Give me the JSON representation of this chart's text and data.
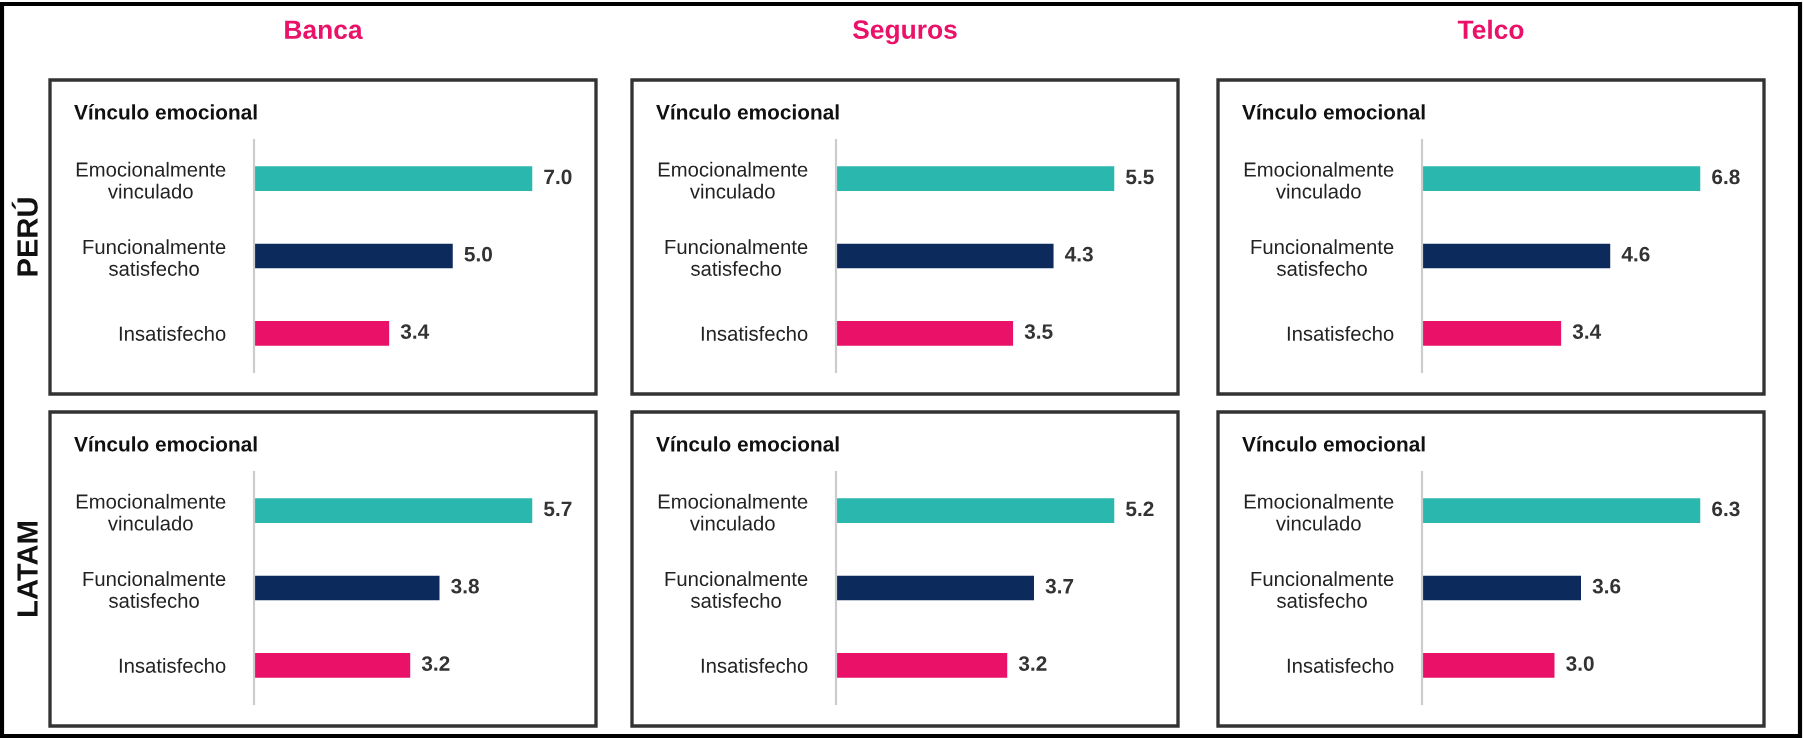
{
  "chart_data": [
    {
      "type": "bar",
      "orientation": "horizontal",
      "title": "Vínculo emocional",
      "annotations": [
        "Banca",
        "PERÚ"
      ],
      "categories": [
        "Emocionalmente\nvinculado",
        "Funcionalmente\nsatisfecho",
        "Insatisfecho"
      ],
      "values": [
        7.0,
        5.0,
        3.4
      ],
      "colors": [
        "#2ab7ae",
        "#0d2a5c",
        "#ea1168"
      ],
      "value_labels": [
        "7.0",
        "5.0",
        "3.4"
      ]
    },
    {
      "type": "bar",
      "orientation": "horizontal",
      "title": "Vínculo emocional",
      "annotations": [
        "Seguros"
      ],
      "categories": [
        "Emocionalmente\nvinculado",
        "Funcionalmente\nsatisfecho",
        "Insatisfecho"
      ],
      "values": [
        5.5,
        4.3,
        3.5
      ],
      "colors": [
        "#2ab7ae",
        "#0d2a5c",
        "#ea1168"
      ],
      "value_labels": [
        "5.5",
        "4.3",
        "3.5"
      ]
    },
    {
      "type": "bar",
      "orientation": "horizontal",
      "title": "Vínculo emocional",
      "annotations": [
        "Telco"
      ],
      "categories": [
        "Emocionalmente\nvinculado",
        "Funcionalmente\nsatisfecho",
        "Insatisfecho"
      ],
      "values": [
        6.8,
        4.6,
        3.4
      ],
      "colors": [
        "#2ab7ae",
        "#0d2a5c",
        "#ea1168"
      ],
      "value_labels": [
        "6.8",
        "4.6",
        "3.4"
      ]
    },
    {
      "type": "bar",
      "orientation": "horizontal",
      "title": "Vínculo emocional",
      "annotations": [
        "LATAM"
      ],
      "categories": [
        "Emocionalmente\nvinculado",
        "Funcionalmente\nsatisfecho",
        "Insatisfecho"
      ],
      "values": [
        5.7,
        3.8,
        3.2
      ],
      "colors": [
        "#2ab7ae",
        "#0d2a5c",
        "#ea1168"
      ],
      "value_labels": [
        "5.7",
        "3.8",
        "3.2"
      ]
    },
    {
      "type": "bar",
      "orientation": "horizontal",
      "title": "Vínculo emocional",
      "categories": [
        "Emocionalmente\nvinculado",
        "Funcionalmente\nsatisfecho",
        "Insatisfecho"
      ],
      "values": [
        5.2,
        3.7,
        3.2
      ],
      "colors": [
        "#2ab7ae",
        "#0d2a5c",
        "#ea1168"
      ],
      "value_labels": [
        "5.2",
        "3.7",
        "3.2"
      ]
    },
    {
      "type": "bar",
      "orientation": "horizontal",
      "title": "Vínculo emocional",
      "categories": [
        "Emocionalmente\nvinculado",
        "Funcionalmente\nsatisfecho",
        "Insatisfecho"
      ],
      "values": [
        6.3,
        3.6,
        3.0
      ],
      "colors": [
        "#2ab7ae",
        "#0d2a5c",
        "#ea1168"
      ],
      "value_labels": [
        "6.3",
        "3.6",
        "3.0"
      ]
    }
  ]
}
